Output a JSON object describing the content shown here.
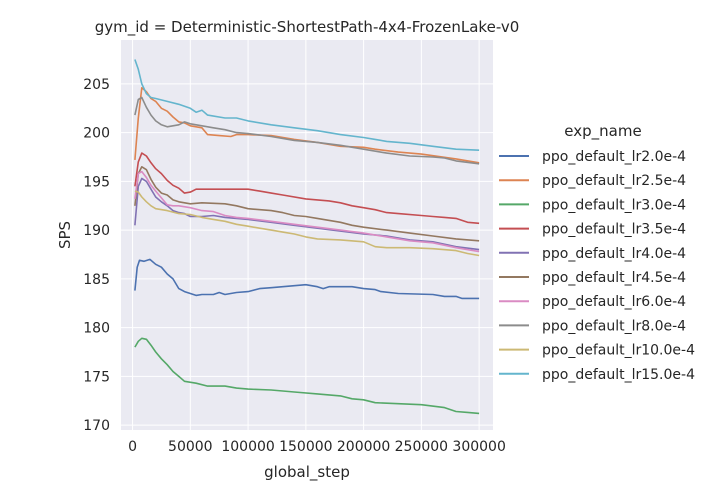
{
  "chart_data": {
    "type": "line",
    "title": "gym_id = Deterministic-ShortestPath-4x4-FrozenLake-v0",
    "xlabel": "global_step",
    "ylabel": "SPS",
    "xlim": [
      -10000,
      312000
    ],
    "ylim": [
      169.5,
      209.5
    ],
    "xticks": [
      0,
      50000,
      100000,
      150000,
      200000,
      250000,
      300000
    ],
    "yticks": [
      170,
      175,
      180,
      185,
      190,
      195,
      200,
      205
    ],
    "grid": true,
    "background": "#eaeaf2",
    "legend": {
      "title": "exp_name",
      "placement": "right"
    },
    "series": [
      {
        "name": "ppo_default_lr2.0e-4",
        "color": "#4c72b0",
        "points": [
          [
            2000,
            183.8
          ],
          [
            4000,
            186.2
          ],
          [
            6000,
            186.9
          ],
          [
            10000,
            186.8
          ],
          [
            15000,
            187.0
          ],
          [
            20000,
            186.5
          ],
          [
            25000,
            186.2
          ],
          [
            30000,
            185.5
          ],
          [
            35000,
            185.0
          ],
          [
            40000,
            184.0
          ],
          [
            45000,
            183.7
          ],
          [
            50000,
            183.5
          ],
          [
            55000,
            183.3
          ],
          [
            60000,
            183.4
          ],
          [
            70000,
            183.4
          ],
          [
            75000,
            183.6
          ],
          [
            80000,
            183.4
          ],
          [
            90000,
            183.6
          ],
          [
            100000,
            183.7
          ],
          [
            110000,
            184.0
          ],
          [
            120000,
            184.1
          ],
          [
            130000,
            184.2
          ],
          [
            140000,
            184.3
          ],
          [
            150000,
            184.4
          ],
          [
            160000,
            184.2
          ],
          [
            165000,
            184.0
          ],
          [
            170000,
            184.2
          ],
          [
            190000,
            184.2
          ],
          [
            200000,
            184.0
          ],
          [
            210000,
            183.9
          ],
          [
            215000,
            183.7
          ],
          [
            230000,
            183.5
          ],
          [
            260000,
            183.4
          ],
          [
            270000,
            183.2
          ],
          [
            280000,
            183.2
          ],
          [
            285000,
            183.0
          ],
          [
            300000,
            183.0
          ]
        ]
      },
      {
        "name": "ppo_default_lr2.5e-4",
        "color": "#dd8452",
        "points": [
          [
            2000,
            197.2
          ],
          [
            5000,
            201.5
          ],
          [
            8000,
            204.6
          ],
          [
            12000,
            204.2
          ],
          [
            16000,
            203.5
          ],
          [
            20000,
            203.2
          ],
          [
            25000,
            202.5
          ],
          [
            30000,
            202.2
          ],
          [
            35000,
            201.6
          ],
          [
            40000,
            201.1
          ],
          [
            45000,
            201.0
          ],
          [
            50000,
            200.7
          ],
          [
            60000,
            200.5
          ],
          [
            65000,
            199.8
          ],
          [
            75000,
            199.7
          ],
          [
            85000,
            199.6
          ],
          [
            90000,
            199.8
          ],
          [
            100000,
            199.8
          ],
          [
            120000,
            199.7
          ],
          [
            140000,
            199.3
          ],
          [
            160000,
            199.0
          ],
          [
            180000,
            198.6
          ],
          [
            200000,
            198.5
          ],
          [
            210000,
            198.3
          ],
          [
            230000,
            198.0
          ],
          [
            250000,
            197.8
          ],
          [
            280000,
            197.3
          ],
          [
            300000,
            196.9
          ]
        ]
      },
      {
        "name": "ppo_default_lr3.0e-4",
        "color": "#55a868",
        "points": [
          [
            2000,
            178.0
          ],
          [
            5000,
            178.6
          ],
          [
            8000,
            178.9
          ],
          [
            12000,
            178.8
          ],
          [
            16000,
            178.2
          ],
          [
            20000,
            177.5
          ],
          [
            25000,
            176.8
          ],
          [
            30000,
            176.2
          ],
          [
            35000,
            175.5
          ],
          [
            40000,
            175.0
          ],
          [
            45000,
            174.5
          ],
          [
            55000,
            174.3
          ],
          [
            65000,
            174.0
          ],
          [
            80000,
            174.0
          ],
          [
            90000,
            173.8
          ],
          [
            100000,
            173.7
          ],
          [
            120000,
            173.6
          ],
          [
            140000,
            173.4
          ],
          [
            160000,
            173.2
          ],
          [
            180000,
            173.0
          ],
          [
            190000,
            172.7
          ],
          [
            200000,
            172.6
          ],
          [
            210000,
            172.3
          ],
          [
            250000,
            172.1
          ],
          [
            270000,
            171.8
          ],
          [
            280000,
            171.4
          ],
          [
            290000,
            171.3
          ],
          [
            300000,
            171.2
          ]
        ]
      },
      {
        "name": "ppo_default_lr3.5e-4",
        "color": "#c44e52",
        "points": [
          [
            2000,
            194.5
          ],
          [
            5000,
            197.0
          ],
          [
            8000,
            197.9
          ],
          [
            12000,
            197.6
          ],
          [
            16000,
            196.9
          ],
          [
            20000,
            196.3
          ],
          [
            25000,
            195.8
          ],
          [
            30000,
            195.1
          ],
          [
            35000,
            194.6
          ],
          [
            40000,
            194.3
          ],
          [
            45000,
            193.8
          ],
          [
            50000,
            193.9
          ],
          [
            55000,
            194.2
          ],
          [
            70000,
            194.2
          ],
          [
            100000,
            194.2
          ],
          [
            110000,
            194.0
          ],
          [
            120000,
            193.8
          ],
          [
            130000,
            193.6
          ],
          [
            150000,
            193.2
          ],
          [
            170000,
            193.0
          ],
          [
            180000,
            192.8
          ],
          [
            190000,
            192.5
          ],
          [
            200000,
            192.3
          ],
          [
            210000,
            192.1
          ],
          [
            220000,
            191.8
          ],
          [
            230000,
            191.7
          ],
          [
            250000,
            191.5
          ],
          [
            260000,
            191.4
          ],
          [
            270000,
            191.3
          ],
          [
            280000,
            191.2
          ],
          [
            290000,
            190.8
          ],
          [
            300000,
            190.7
          ]
        ]
      },
      {
        "name": "ppo_default_lr4.0e-4",
        "color": "#8172b3",
        "points": [
          [
            2000,
            190.5
          ],
          [
            5000,
            194.5
          ],
          [
            8000,
            195.3
          ],
          [
            12000,
            195.0
          ],
          [
            16000,
            194.2
          ],
          [
            20000,
            193.4
          ],
          [
            25000,
            192.9
          ],
          [
            30000,
            192.5
          ],
          [
            35000,
            192.0
          ],
          [
            40000,
            191.8
          ],
          [
            45000,
            191.7
          ],
          [
            50000,
            191.4
          ],
          [
            60000,
            191.4
          ],
          [
            70000,
            191.5
          ],
          [
            80000,
            191.3
          ],
          [
            100000,
            191.1
          ],
          [
            120000,
            190.8
          ],
          [
            140000,
            190.5
          ],
          [
            160000,
            190.2
          ],
          [
            180000,
            189.9
          ],
          [
            200000,
            189.6
          ],
          [
            220000,
            189.4
          ],
          [
            240000,
            189.0
          ],
          [
            260000,
            188.8
          ],
          [
            280000,
            188.3
          ],
          [
            300000,
            188.0
          ]
        ]
      },
      {
        "name": "ppo_default_lr4.5e-4",
        "color": "#937860",
        "points": [
          [
            2000,
            192.5
          ],
          [
            5000,
            195.8
          ],
          [
            8000,
            196.5
          ],
          [
            12000,
            196.2
          ],
          [
            16000,
            195.2
          ],
          [
            20000,
            194.4
          ],
          [
            25000,
            193.8
          ],
          [
            30000,
            193.6
          ],
          [
            35000,
            193.1
          ],
          [
            40000,
            192.9
          ],
          [
            50000,
            192.7
          ],
          [
            60000,
            192.8
          ],
          [
            80000,
            192.7
          ],
          [
            90000,
            192.5
          ],
          [
            100000,
            192.2
          ],
          [
            120000,
            192.0
          ],
          [
            130000,
            191.8
          ],
          [
            140000,
            191.5
          ],
          [
            150000,
            191.4
          ],
          [
            160000,
            191.2
          ],
          [
            180000,
            190.8
          ],
          [
            190000,
            190.5
          ],
          [
            200000,
            190.3
          ],
          [
            220000,
            190.0
          ],
          [
            240000,
            189.7
          ],
          [
            260000,
            189.4
          ],
          [
            280000,
            189.1
          ],
          [
            300000,
            188.9
          ]
        ]
      },
      {
        "name": "ppo_default_lr6.0e-4",
        "color": "#da8bc3",
        "points": [
          [
            2000,
            193.2
          ],
          [
            5000,
            195.8
          ],
          [
            8000,
            196.0
          ],
          [
            12000,
            195.4
          ],
          [
            16000,
            194.6
          ],
          [
            20000,
            194.0
          ],
          [
            25000,
            193.3
          ],
          [
            30000,
            192.6
          ],
          [
            35000,
            192.5
          ],
          [
            40000,
            192.5
          ],
          [
            50000,
            192.3
          ],
          [
            60000,
            192.0
          ],
          [
            70000,
            191.9
          ],
          [
            80000,
            191.5
          ],
          [
            90000,
            191.3
          ],
          [
            100000,
            191.2
          ],
          [
            120000,
            190.9
          ],
          [
            140000,
            190.6
          ],
          [
            160000,
            190.3
          ],
          [
            180000,
            190.0
          ],
          [
            200000,
            189.7
          ],
          [
            220000,
            189.3
          ],
          [
            240000,
            188.9
          ],
          [
            260000,
            188.7
          ],
          [
            280000,
            188.2
          ],
          [
            300000,
            187.8
          ]
        ]
      },
      {
        "name": "ppo_default_lr8.0e-4",
        "color": "#8c8c8c",
        "points": [
          [
            2000,
            201.8
          ],
          [
            5000,
            203.4
          ],
          [
            8000,
            203.6
          ],
          [
            12000,
            202.6
          ],
          [
            16000,
            201.8
          ],
          [
            20000,
            201.2
          ],
          [
            25000,
            200.8
          ],
          [
            30000,
            200.6
          ],
          [
            40000,
            200.8
          ],
          [
            45000,
            201.1
          ],
          [
            50000,
            200.9
          ],
          [
            60000,
            200.7
          ],
          [
            70000,
            200.5
          ],
          [
            80000,
            200.3
          ],
          [
            90000,
            200.0
          ],
          [
            100000,
            199.9
          ],
          [
            120000,
            199.6
          ],
          [
            140000,
            199.2
          ],
          [
            160000,
            199.0
          ],
          [
            180000,
            198.7
          ],
          [
            200000,
            198.3
          ],
          [
            220000,
            197.9
          ],
          [
            240000,
            197.6
          ],
          [
            260000,
            197.5
          ],
          [
            270000,
            197.4
          ],
          [
            280000,
            197.1
          ],
          [
            300000,
            196.8
          ]
        ]
      },
      {
        "name": "ppo_default_lr10.0e-4",
        "color": "#ccb974",
        "points": [
          [
            2000,
            194.0
          ],
          [
            5000,
            193.9
          ],
          [
            8000,
            193.4
          ],
          [
            12000,
            192.9
          ],
          [
            16000,
            192.5
          ],
          [
            20000,
            192.2
          ],
          [
            30000,
            192.0
          ],
          [
            40000,
            191.7
          ],
          [
            50000,
            191.6
          ],
          [
            60000,
            191.3
          ],
          [
            70000,
            191.1
          ],
          [
            80000,
            190.9
          ],
          [
            90000,
            190.6
          ],
          [
            100000,
            190.4
          ],
          [
            110000,
            190.2
          ],
          [
            120000,
            190.0
          ],
          [
            130000,
            189.8
          ],
          [
            140000,
            189.6
          ],
          [
            150000,
            189.3
          ],
          [
            160000,
            189.1
          ],
          [
            180000,
            189.0
          ],
          [
            200000,
            188.8
          ],
          [
            210000,
            188.3
          ],
          [
            220000,
            188.2
          ],
          [
            240000,
            188.2
          ],
          [
            260000,
            188.1
          ],
          [
            280000,
            187.9
          ],
          [
            290000,
            187.6
          ],
          [
            300000,
            187.4
          ]
        ]
      },
      {
        "name": "ppo_default_lr15.0e-4",
        "color": "#64b5cd",
        "points": [
          [
            2000,
            207.5
          ],
          [
            5000,
            206.5
          ],
          [
            8000,
            205.0
          ],
          [
            12000,
            204.0
          ],
          [
            16000,
            203.6
          ],
          [
            20000,
            203.5
          ],
          [
            30000,
            203.2
          ],
          [
            40000,
            202.9
          ],
          [
            50000,
            202.5
          ],
          [
            55000,
            202.1
          ],
          [
            60000,
            202.3
          ],
          [
            65000,
            201.8
          ],
          [
            80000,
            201.5
          ],
          [
            90000,
            201.5
          ],
          [
            100000,
            201.2
          ],
          [
            120000,
            200.8
          ],
          [
            140000,
            200.5
          ],
          [
            160000,
            200.2
          ],
          [
            180000,
            199.8
          ],
          [
            200000,
            199.5
          ],
          [
            210000,
            199.3
          ],
          [
            220000,
            199.1
          ],
          [
            240000,
            198.9
          ],
          [
            260000,
            198.6
          ],
          [
            280000,
            198.3
          ],
          [
            300000,
            198.2
          ]
        ]
      }
    ]
  }
}
